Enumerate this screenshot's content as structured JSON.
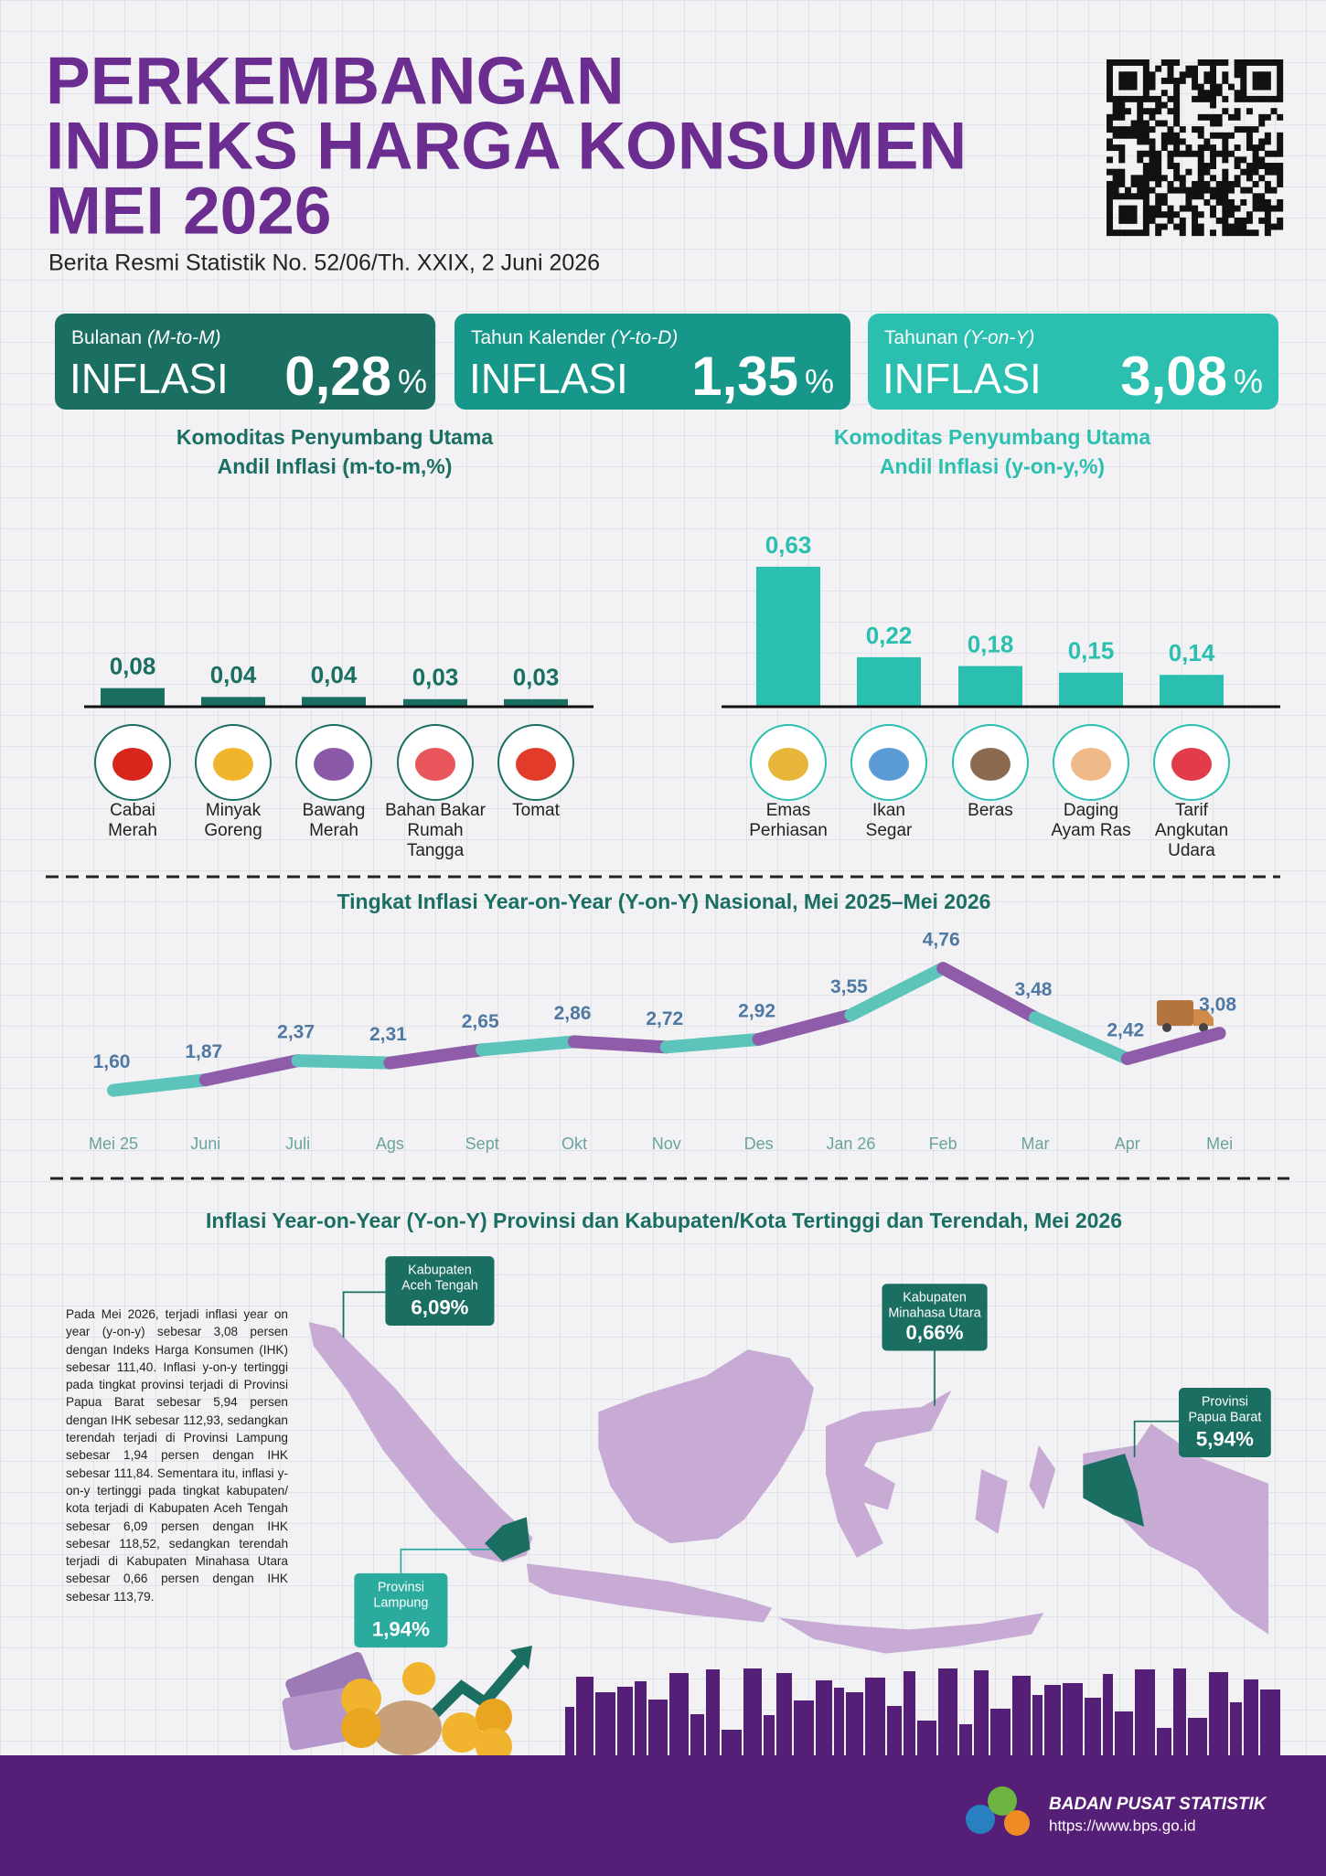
{
  "header": {
    "title_lines": [
      "PERKEMBANGAN",
      "INDEKS HARGA KONSUMEN",
      "MEI 2026"
    ],
    "subtitle": "Berita Resmi Statistik No. 52/06/Th. XXIX, 2 Juni 2026"
  },
  "cards": [
    {
      "label": "Bulanan",
      "label_italic": "(M-to-M)",
      "word": "INFLASI",
      "value": "0,28",
      "unit": "%",
      "color": "#1b6e62"
    },
    {
      "label": "Tahun Kalender",
      "label_italic": "(Y-to-D)",
      "word": "INFLASI",
      "value": "1,35",
      "unit": "%",
      "color": "#17978a"
    },
    {
      "label": "Tahunan",
      "label_italic": "(Y-on-Y)",
      "word": "INFLASI",
      "value": "3,08",
      "unit": "%",
      "color": "#2bbfb0"
    }
  ],
  "chart_data": [
    {
      "type": "bar",
      "title_lines": [
        "Komoditas Penyumbang Utama",
        "Andil Inflasi (m-to-m,%)"
      ],
      "categories": [
        "Cabai\nMerah",
        "Minyak\nGoreng",
        "Bawang\nMerah",
        "Bahan Bakar\nRumah\nTangga",
        "Tomat"
      ],
      "values": [
        0.08,
        0.04,
        0.04,
        0.03,
        0.03
      ],
      "value_labels": [
        "0,08",
        "0,04",
        "0,04",
        "0,03",
        "0,03"
      ],
      "color": "#1b6e62",
      "ylim": [
        0,
        0.7
      ]
    },
    {
      "type": "bar",
      "title_lines": [
        "Komoditas Penyumbang Utama",
        "Andil Inflasi (y-on-y,%)"
      ],
      "categories": [
        "Emas\nPerhiasan",
        "Ikan\nSegar",
        "Beras",
        "Daging\nAyam Ras",
        "Tarif\nAngkutan\nUdara"
      ],
      "values": [
        0.63,
        0.22,
        0.18,
        0.15,
        0.14
      ],
      "value_labels": [
        "0,63",
        "0,22",
        "0,18",
        "0,15",
        "0,14"
      ],
      "color": "#2bbfb0",
      "ylim": [
        0,
        0.7
      ]
    },
    {
      "type": "line",
      "title": "Tingkat Inflasi Year-on-Year (Y-on-Y) Nasional, Mei 2025–Mei 2026",
      "categories": [
        "Mei 25",
        "Juni",
        "Juli",
        "Ags",
        "Sept",
        "Okt",
        "Nov",
        "Des",
        "Jan 26",
        "Feb",
        "Mar",
        "Apr",
        "Mei"
      ],
      "values": [
        1.6,
        1.87,
        2.37,
        2.31,
        2.65,
        2.86,
        2.72,
        2.92,
        3.55,
        4.76,
        3.48,
        2.42,
        3.08
      ],
      "value_labels": [
        "1,60",
        "1,87",
        "2,37",
        "2,31",
        "2,65",
        "2,86",
        "2,72",
        "2,92",
        "3,55",
        "4,76",
        "3,48",
        "2,42",
        "3,08"
      ],
      "colors": [
        "#5cc4bb",
        "#8f5ca9"
      ],
      "ylim": [
        1,
        5
      ]
    }
  ],
  "map": {
    "title": "Inflasi Year-on-Year (Y-on-Y) Provinsi dan Kabupaten/Kota Tertinggi dan Terendah, Mei 2026",
    "callouts": [
      {
        "kind": "Kabupaten",
        "name": "Aceh Tengah",
        "value": "6,09%",
        "color": "#1b6e62"
      },
      {
        "kind": "Kabupaten",
        "name": "Minahasa Utara",
        "value": "0,66%",
        "color": "#1b6e62"
      },
      {
        "kind": "Provinsi",
        "name": "Papua Barat",
        "value": "5,94%",
        "color": "#1b6e62"
      },
      {
        "kind": "Provinsi",
        "name": "Lampung",
        "value": "1,94%",
        "color": "#2aab9d"
      }
    ]
  },
  "paragraph": "Pada Mei 2026, terjadi inflasi year on year (y-on-y) sebesar 3,08 persen dengan Indeks Harga Konsumen (IHK) sebesar 111,40. Inflasi y-on-y tertinggi pada tingkat provinsi terjadi di Provinsi Papua Barat sebesar 5,94 persen dengan IHK sebesar 112,93, sedangkan terendah terjadi di Provinsi Lampung sebesar 1,94 persen dengan IHK sebesar 111,84. Sementara itu, inflasi y-on-y tertinggi pada tingkat kabupaten/ kota terjadi di Kabupaten Aceh Tengah sebesar 6,09 persen dengan IHK sebesar 118,52, sedangkan terendah terjadi di Kabupaten Minahasa Utara sebesar 0,66 persen dengan IHK sebesar 113,79.",
  "footer": {
    "org": "BADAN PUSAT STATISTIK",
    "url": "https://www.bps.go.id"
  }
}
